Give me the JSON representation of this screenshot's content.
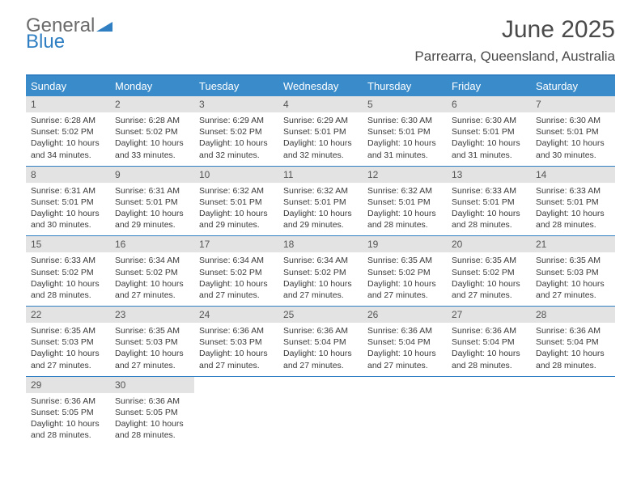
{
  "logo": {
    "top": "General",
    "bottom": "Blue"
  },
  "title": "June 2025",
  "location": "Parrearra, Queensland, Australia",
  "colors": {
    "header_bg": "#3a8bc9",
    "border": "#2f7fc2",
    "daynum_bg": "#e3e3e3",
    "text": "#3a3a3a"
  },
  "dow": [
    "Sunday",
    "Monday",
    "Tuesday",
    "Wednesday",
    "Thursday",
    "Friday",
    "Saturday"
  ],
  "weeks": [
    [
      {
        "n": "1",
        "sr": "6:28 AM",
        "ss": "5:02 PM",
        "dl": "10 hours and 34 minutes."
      },
      {
        "n": "2",
        "sr": "6:28 AM",
        "ss": "5:02 PM",
        "dl": "10 hours and 33 minutes."
      },
      {
        "n": "3",
        "sr": "6:29 AM",
        "ss": "5:02 PM",
        "dl": "10 hours and 32 minutes."
      },
      {
        "n": "4",
        "sr": "6:29 AM",
        "ss": "5:01 PM",
        "dl": "10 hours and 32 minutes."
      },
      {
        "n": "5",
        "sr": "6:30 AM",
        "ss": "5:01 PM",
        "dl": "10 hours and 31 minutes."
      },
      {
        "n": "6",
        "sr": "6:30 AM",
        "ss": "5:01 PM",
        "dl": "10 hours and 31 minutes."
      },
      {
        "n": "7",
        "sr": "6:30 AM",
        "ss": "5:01 PM",
        "dl": "10 hours and 30 minutes."
      }
    ],
    [
      {
        "n": "8",
        "sr": "6:31 AM",
        "ss": "5:01 PM",
        "dl": "10 hours and 30 minutes."
      },
      {
        "n": "9",
        "sr": "6:31 AM",
        "ss": "5:01 PM",
        "dl": "10 hours and 29 minutes."
      },
      {
        "n": "10",
        "sr": "6:32 AM",
        "ss": "5:01 PM",
        "dl": "10 hours and 29 minutes."
      },
      {
        "n": "11",
        "sr": "6:32 AM",
        "ss": "5:01 PM",
        "dl": "10 hours and 29 minutes."
      },
      {
        "n": "12",
        "sr": "6:32 AM",
        "ss": "5:01 PM",
        "dl": "10 hours and 28 minutes."
      },
      {
        "n": "13",
        "sr": "6:33 AM",
        "ss": "5:01 PM",
        "dl": "10 hours and 28 minutes."
      },
      {
        "n": "14",
        "sr": "6:33 AM",
        "ss": "5:01 PM",
        "dl": "10 hours and 28 minutes."
      }
    ],
    [
      {
        "n": "15",
        "sr": "6:33 AM",
        "ss": "5:02 PM",
        "dl": "10 hours and 28 minutes."
      },
      {
        "n": "16",
        "sr": "6:34 AM",
        "ss": "5:02 PM",
        "dl": "10 hours and 27 minutes."
      },
      {
        "n": "17",
        "sr": "6:34 AM",
        "ss": "5:02 PM",
        "dl": "10 hours and 27 minutes."
      },
      {
        "n": "18",
        "sr": "6:34 AM",
        "ss": "5:02 PM",
        "dl": "10 hours and 27 minutes."
      },
      {
        "n": "19",
        "sr": "6:35 AM",
        "ss": "5:02 PM",
        "dl": "10 hours and 27 minutes."
      },
      {
        "n": "20",
        "sr": "6:35 AM",
        "ss": "5:02 PM",
        "dl": "10 hours and 27 minutes."
      },
      {
        "n": "21",
        "sr": "6:35 AM",
        "ss": "5:03 PM",
        "dl": "10 hours and 27 minutes."
      }
    ],
    [
      {
        "n": "22",
        "sr": "6:35 AM",
        "ss": "5:03 PM",
        "dl": "10 hours and 27 minutes."
      },
      {
        "n": "23",
        "sr": "6:35 AM",
        "ss": "5:03 PM",
        "dl": "10 hours and 27 minutes."
      },
      {
        "n": "24",
        "sr": "6:36 AM",
        "ss": "5:03 PM",
        "dl": "10 hours and 27 minutes."
      },
      {
        "n": "25",
        "sr": "6:36 AM",
        "ss": "5:04 PM",
        "dl": "10 hours and 27 minutes."
      },
      {
        "n": "26",
        "sr": "6:36 AM",
        "ss": "5:04 PM",
        "dl": "10 hours and 27 minutes."
      },
      {
        "n": "27",
        "sr": "6:36 AM",
        "ss": "5:04 PM",
        "dl": "10 hours and 28 minutes."
      },
      {
        "n": "28",
        "sr": "6:36 AM",
        "ss": "5:04 PM",
        "dl": "10 hours and 28 minutes."
      }
    ],
    [
      {
        "n": "29",
        "sr": "6:36 AM",
        "ss": "5:05 PM",
        "dl": "10 hours and 28 minutes."
      },
      {
        "n": "30",
        "sr": "6:36 AM",
        "ss": "5:05 PM",
        "dl": "10 hours and 28 minutes."
      },
      null,
      null,
      null,
      null,
      null
    ]
  ],
  "labels": {
    "sunrise": "Sunrise: ",
    "sunset": "Sunset: ",
    "daylight": "Daylight: "
  }
}
